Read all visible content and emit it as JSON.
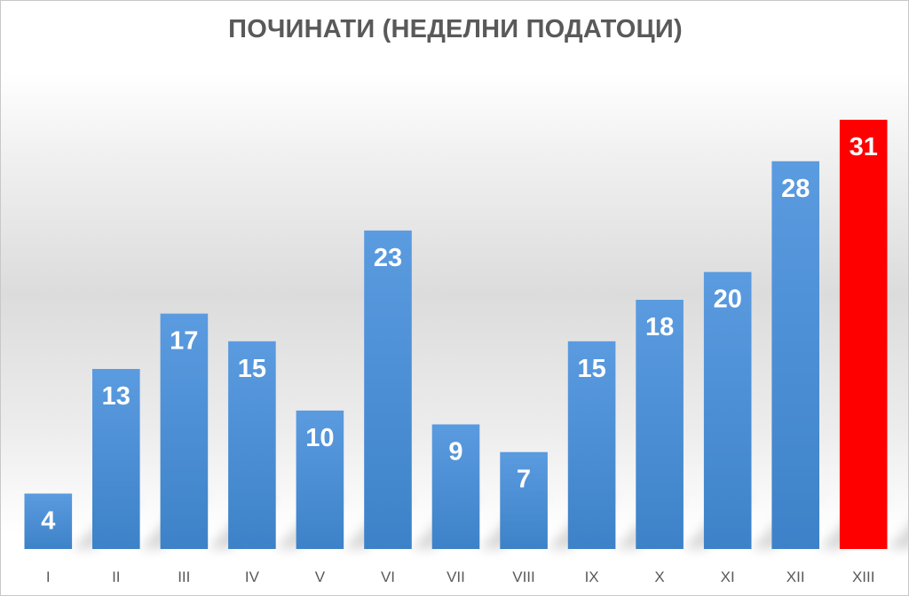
{
  "chart_data": {
    "type": "bar",
    "title": "ПОЧИНАТИ (НЕДЕЛНИ ПОДАТОЦИ)",
    "xlabel": "",
    "ylabel": "",
    "categories": [
      "I",
      "II",
      "III",
      "IV",
      "V",
      "VI",
      "VII",
      "VIII",
      "IX",
      "X",
      "XI",
      "XII",
      "XIII"
    ],
    "values": [
      4,
      13,
      17,
      15,
      10,
      23,
      9,
      7,
      15,
      18,
      20,
      28,
      31
    ],
    "ylim": [
      0,
      31
    ],
    "grid": false,
    "legend": "none",
    "colors": {
      "default": "#4a8fd4",
      "highlight": "#ff0000",
      "highlight_index": 12
    }
  }
}
